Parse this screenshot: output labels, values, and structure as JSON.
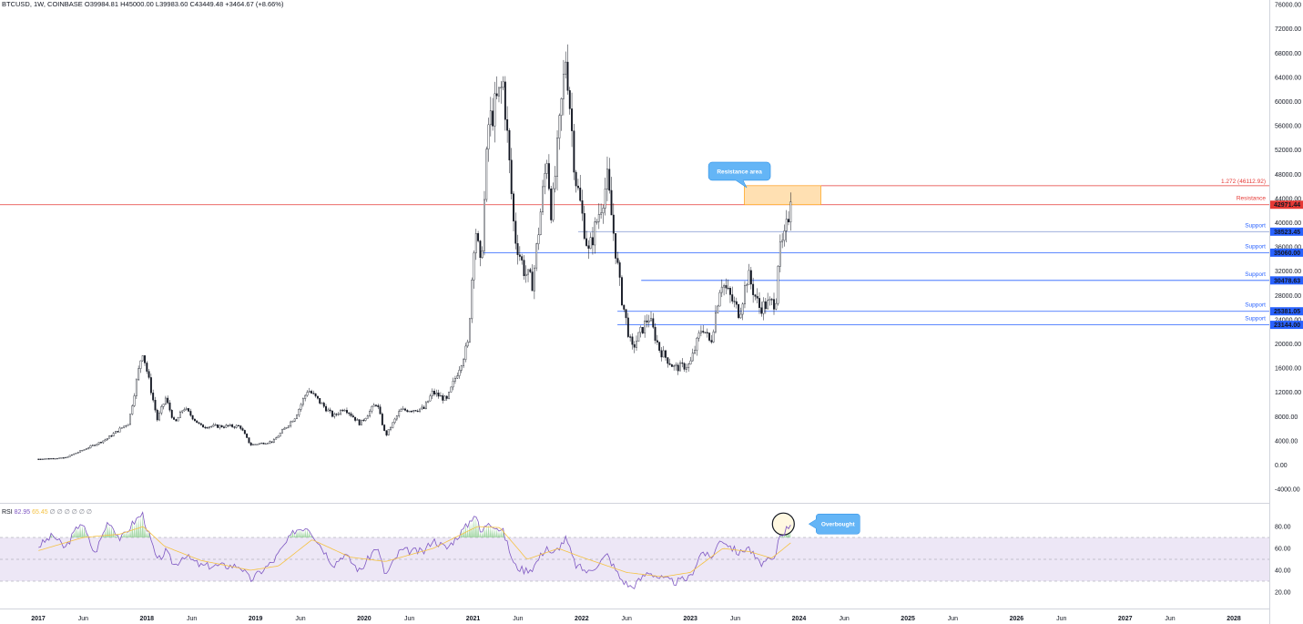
{
  "header": {
    "symbol": "BTCUSD",
    "interval": "1W",
    "exchange": "COINBASE",
    "open": "O39984.81",
    "high": "H45000.00",
    "low": "L39983.60",
    "close": "C43449.48",
    "change": "+3464.67 (+8.66%)"
  },
  "colors": {
    "candle": "#131722",
    "resistance": "#e53935",
    "support": "#2962ff",
    "support_line": "#90a4d8",
    "zone_fill": "#ffe0b2",
    "zone_stroke": "#ff9800",
    "callout": "#64b5f6",
    "rsi_line": "#7e57c2",
    "rsi_ma": "#f5c242",
    "rsi_band": "#ede7f6"
  },
  "chart_data": [
    {
      "type": "candlestick",
      "title": "",
      "x_tick_labels": [
        "2017",
        "Jun",
        "2018",
        "Jun",
        "2019",
        "Jun",
        "2020",
        "Jun",
        "2021",
        "Jun",
        "2022",
        "Jun",
        "2023",
        "Jun",
        "2024",
        "Jun",
        "2025",
        "Jun",
        "2026",
        "Jun",
        "2027",
        "Jun",
        "2028"
      ],
      "y_tick_labels": [
        "76000.00",
        "72000.00",
        "68000.00",
        "64000.00",
        "60000.00",
        "56000.00",
        "52000.00",
        "48000.00",
        "44000.00",
        "40000.00",
        "36000.00",
        "32000.00",
        "28000.00",
        "24000.00",
        "20000.00",
        "16000.00",
        "12000.00",
        "8000.00",
        "4000.00",
        "0.00",
        "-4000.00"
      ],
      "ylim": [
        -4000,
        76000
      ],
      "grid": false,
      "series": [
        {
          "keypoints": [
            {
              "date": "2017-01-02",
              "close": 1000
            },
            {
              "date": "2017-04-01",
              "close": 1200
            },
            {
              "date": "2017-06-10",
              "close": 2700
            },
            {
              "date": "2017-08-15",
              "close": 4200
            },
            {
              "date": "2017-11-01",
              "close": 7000
            },
            {
              "date": "2017-12-17",
              "close": 19000
            },
            {
              "date": "2018-02-05",
              "close": 7500
            },
            {
              "date": "2018-03-05",
              "close": 11000
            },
            {
              "date": "2018-04-05",
              "close": 6800
            },
            {
              "date": "2018-05-05",
              "close": 9500
            },
            {
              "date": "2018-07-01",
              "close": 6400
            },
            {
              "date": "2018-11-10",
              "close": 6400
            },
            {
              "date": "2018-12-15",
              "close": 3300
            },
            {
              "date": "2019-03-01",
              "close": 3900
            },
            {
              "date": "2019-05-15",
              "close": 8000
            },
            {
              "date": "2019-06-26",
              "close": 12500
            },
            {
              "date": "2019-09-20",
              "close": 8000
            },
            {
              "date": "2019-10-26",
              "close": 9500
            },
            {
              "date": "2019-12-18",
              "close": 6800
            },
            {
              "date": "2020-02-12",
              "close": 10300
            },
            {
              "date": "2020-03-13",
              "close": 4800
            },
            {
              "date": "2020-05-01",
              "close": 9000
            },
            {
              "date": "2020-07-20",
              "close": 9300
            },
            {
              "date": "2020-08-18",
              "close": 12000
            },
            {
              "date": "2020-10-05",
              "close": 10700
            },
            {
              "date": "2020-12-15",
              "close": 20000
            },
            {
              "date": "2021-01-08",
              "close": 40000
            },
            {
              "date": "2021-01-27",
              "close": 32000
            },
            {
              "date": "2021-02-21",
              "close": 56000
            },
            {
              "date": "2021-04-13",
              "close": 63000
            },
            {
              "date": "2021-05-20",
              "close": 38000
            },
            {
              "date": "2021-06-22",
              "close": 32000
            },
            {
              "date": "2021-07-20",
              "close": 30000
            },
            {
              "date": "2021-09-06",
              "close": 51000
            },
            {
              "date": "2021-09-22",
              "close": 41000
            },
            {
              "date": "2021-11-09",
              "close": 68000
            },
            {
              "date": "2021-12-10",
              "close": 48000
            },
            {
              "date": "2022-01-24",
              "close": 35000
            },
            {
              "date": "2022-03-28",
              "close": 47000
            },
            {
              "date": "2022-05-12",
              "close": 28500
            },
            {
              "date": "2022-06-18",
              "close": 19000
            },
            {
              "date": "2022-08-14",
              "close": 24500
            },
            {
              "date": "2022-09-20",
              "close": 19000
            },
            {
              "date": "2022-11-09",
              "close": 16000
            },
            {
              "date": "2022-12-30",
              "close": 16500
            },
            {
              "date": "2023-02-10",
              "close": 23000
            },
            {
              "date": "2023-03-10",
              "close": 20000
            },
            {
              "date": "2023-04-14",
              "close": 30500
            },
            {
              "date": "2023-06-15",
              "close": 25000
            },
            {
              "date": "2023-07-13",
              "close": 31500
            },
            {
              "date": "2023-08-20",
              "close": 26000
            },
            {
              "date": "2023-10-15",
              "close": 27000
            },
            {
              "date": "2023-10-24",
              "close": 34500
            },
            {
              "date": "2023-11-15",
              "close": 37500
            },
            {
              "date": "2023-12-04",
              "close": 43449
            }
          ]
        }
      ],
      "levels": [
        {
          "label": "1.272 (46112.92)",
          "value": 46112.92,
          "kind": "fib"
        },
        {
          "label": "Resistance",
          "value": 42971.44,
          "tag": "42971.44",
          "kind": "resistance"
        },
        {
          "label": "Support",
          "value": 38523.45,
          "tag": "38523.45",
          "kind": "support"
        },
        {
          "label": "Support",
          "value": 35060.0,
          "tag": "35060.00",
          "kind": "support"
        },
        {
          "label": "Support",
          "value": 30478.63,
          "tag": "30478.63",
          "kind": "support"
        },
        {
          "label": "Support",
          "value": 25381.05,
          "tag": "25381.05",
          "kind": "support"
        },
        {
          "label": "Support",
          "value": 23144.0,
          "tag": "23144.00",
          "kind": "support"
        }
      ],
      "resistance_zone": {
        "from_date": "2023-07-01",
        "to_date": "2024-03-15",
        "low": 42971.44,
        "high": 46112.92
      },
      "annotations": [
        {
          "text": "Resistance area",
          "date": "2023-06-15",
          "value": 48500
        }
      ]
    },
    {
      "type": "line",
      "title": "RSI",
      "legend": {
        "name": "RSI",
        "rsi": "82.95",
        "ma": "65.45",
        "extra": [
          "∅",
          "∅",
          "∅",
          "∅",
          "∅",
          "∅"
        ]
      },
      "ylim": [
        10,
        90
      ],
      "y_tick_labels": [
        "80.00",
        "60.00",
        "40.00",
        "20.00"
      ],
      "band": {
        "upper": 70,
        "middle": 50,
        "lower": 30
      },
      "series": [
        {
          "name": "RSI",
          "keypoints": [
            {
              "date": "2017-01-02",
              "value": 62
            },
            {
              "date": "2017-02-20",
              "value": 72
            },
            {
              "date": "2017-04-01",
              "value": 60
            },
            {
              "date": "2017-05-25",
              "value": 85
            },
            {
              "date": "2017-07-10",
              "value": 55
            },
            {
              "date": "2017-08-25",
              "value": 86
            },
            {
              "date": "2017-10-05",
              "value": 68
            },
            {
              "date": "2017-11-15",
              "value": 83
            },
            {
              "date": "2017-12-17",
              "value": 92
            },
            {
              "date": "2018-02-05",
              "value": 48
            },
            {
              "date": "2018-03-05",
              "value": 57
            },
            {
              "date": "2018-04-05",
              "value": 44
            },
            {
              "date": "2018-05-05",
              "value": 54
            },
            {
              "date": "2018-07-01",
              "value": 44
            },
            {
              "date": "2018-11-10",
              "value": 44
            },
            {
              "date": "2018-12-15",
              "value": 31
            },
            {
              "date": "2019-03-01",
              "value": 48
            },
            {
              "date": "2019-05-15",
              "value": 77
            },
            {
              "date": "2019-06-26",
              "value": 80
            },
            {
              "date": "2019-09-20",
              "value": 45
            },
            {
              "date": "2019-10-26",
              "value": 55
            },
            {
              "date": "2019-12-18",
              "value": 39
            },
            {
              "date": "2020-02-12",
              "value": 62
            },
            {
              "date": "2020-03-13",
              "value": 35
            },
            {
              "date": "2020-05-01",
              "value": 58
            },
            {
              "date": "2020-07-20",
              "value": 57
            },
            {
              "date": "2020-08-18",
              "value": 68
            },
            {
              "date": "2020-10-05",
              "value": 60
            },
            {
              "date": "2020-12-15",
              "value": 82
            },
            {
              "date": "2021-01-08",
              "value": 93
            },
            {
              "date": "2021-01-27",
              "value": 73
            },
            {
              "date": "2021-02-21",
              "value": 85
            },
            {
              "date": "2021-04-13",
              "value": 75
            },
            {
              "date": "2021-05-20",
              "value": 44
            },
            {
              "date": "2021-06-22",
              "value": 40
            },
            {
              "date": "2021-07-20",
              "value": 42
            },
            {
              "date": "2021-09-06",
              "value": 62
            },
            {
              "date": "2021-09-22",
              "value": 53
            },
            {
              "date": "2021-11-09",
              "value": 69
            },
            {
              "date": "2021-12-10",
              "value": 45
            },
            {
              "date": "2022-01-24",
              "value": 38
            },
            {
              "date": "2022-03-28",
              "value": 54
            },
            {
              "date": "2022-05-12",
              "value": 32
            },
            {
              "date": "2022-06-18",
              "value": 24
            },
            {
              "date": "2022-08-14",
              "value": 39
            },
            {
              "date": "2022-09-20",
              "value": 33
            },
            {
              "date": "2022-11-09",
              "value": 29
            },
            {
              "date": "2022-12-30",
              "value": 33
            },
            {
              "date": "2023-02-10",
              "value": 58
            },
            {
              "date": "2023-03-10",
              "value": 50
            },
            {
              "date": "2023-04-14",
              "value": 69
            },
            {
              "date": "2023-06-15",
              "value": 55
            },
            {
              "date": "2023-07-13",
              "value": 62
            },
            {
              "date": "2023-08-20",
              "value": 46
            },
            {
              "date": "2023-10-15",
              "value": 50
            },
            {
              "date": "2023-10-24",
              "value": 71
            },
            {
              "date": "2023-11-15",
              "value": 76
            },
            {
              "date": "2023-12-04",
              "value": 83
            }
          ]
        },
        {
          "name": "RSI MA",
          "keypoints": [
            {
              "date": "2017-01-02",
              "value": 58
            },
            {
              "date": "2017-06-01",
              "value": 70
            },
            {
              "date": "2017-10-01",
              "value": 73
            },
            {
              "date": "2017-12-20",
              "value": 80
            },
            {
              "date": "2018-03-01",
              "value": 62
            },
            {
              "date": "2018-07-01",
              "value": 49
            },
            {
              "date": "2018-12-15",
              "value": 40
            },
            {
              "date": "2019-03-20",
              "value": 44
            },
            {
              "date": "2019-07-10",
              "value": 68
            },
            {
              "date": "2019-11-15",
              "value": 52
            },
            {
              "date": "2020-03-13",
              "value": 48
            },
            {
              "date": "2020-08-20",
              "value": 60
            },
            {
              "date": "2021-01-15",
              "value": 80
            },
            {
              "date": "2021-04-01",
              "value": 79
            },
            {
              "date": "2021-07-01",
              "value": 50
            },
            {
              "date": "2021-10-15",
              "value": 60
            },
            {
              "date": "2022-01-01",
              "value": 52
            },
            {
              "date": "2022-06-01",
              "value": 38
            },
            {
              "date": "2022-10-01",
              "value": 34
            },
            {
              "date": "2023-01-01",
              "value": 38
            },
            {
              "date": "2023-04-20",
              "value": 60
            },
            {
              "date": "2023-07-20",
              "value": 57
            },
            {
              "date": "2023-10-01",
              "value": 51
            },
            {
              "date": "2023-12-04",
              "value": 65
            }
          ]
        }
      ],
      "annotations": [
        {
          "text": "Overbought",
          "date": "2023-12-04",
          "value": 84
        }
      ]
    }
  ]
}
